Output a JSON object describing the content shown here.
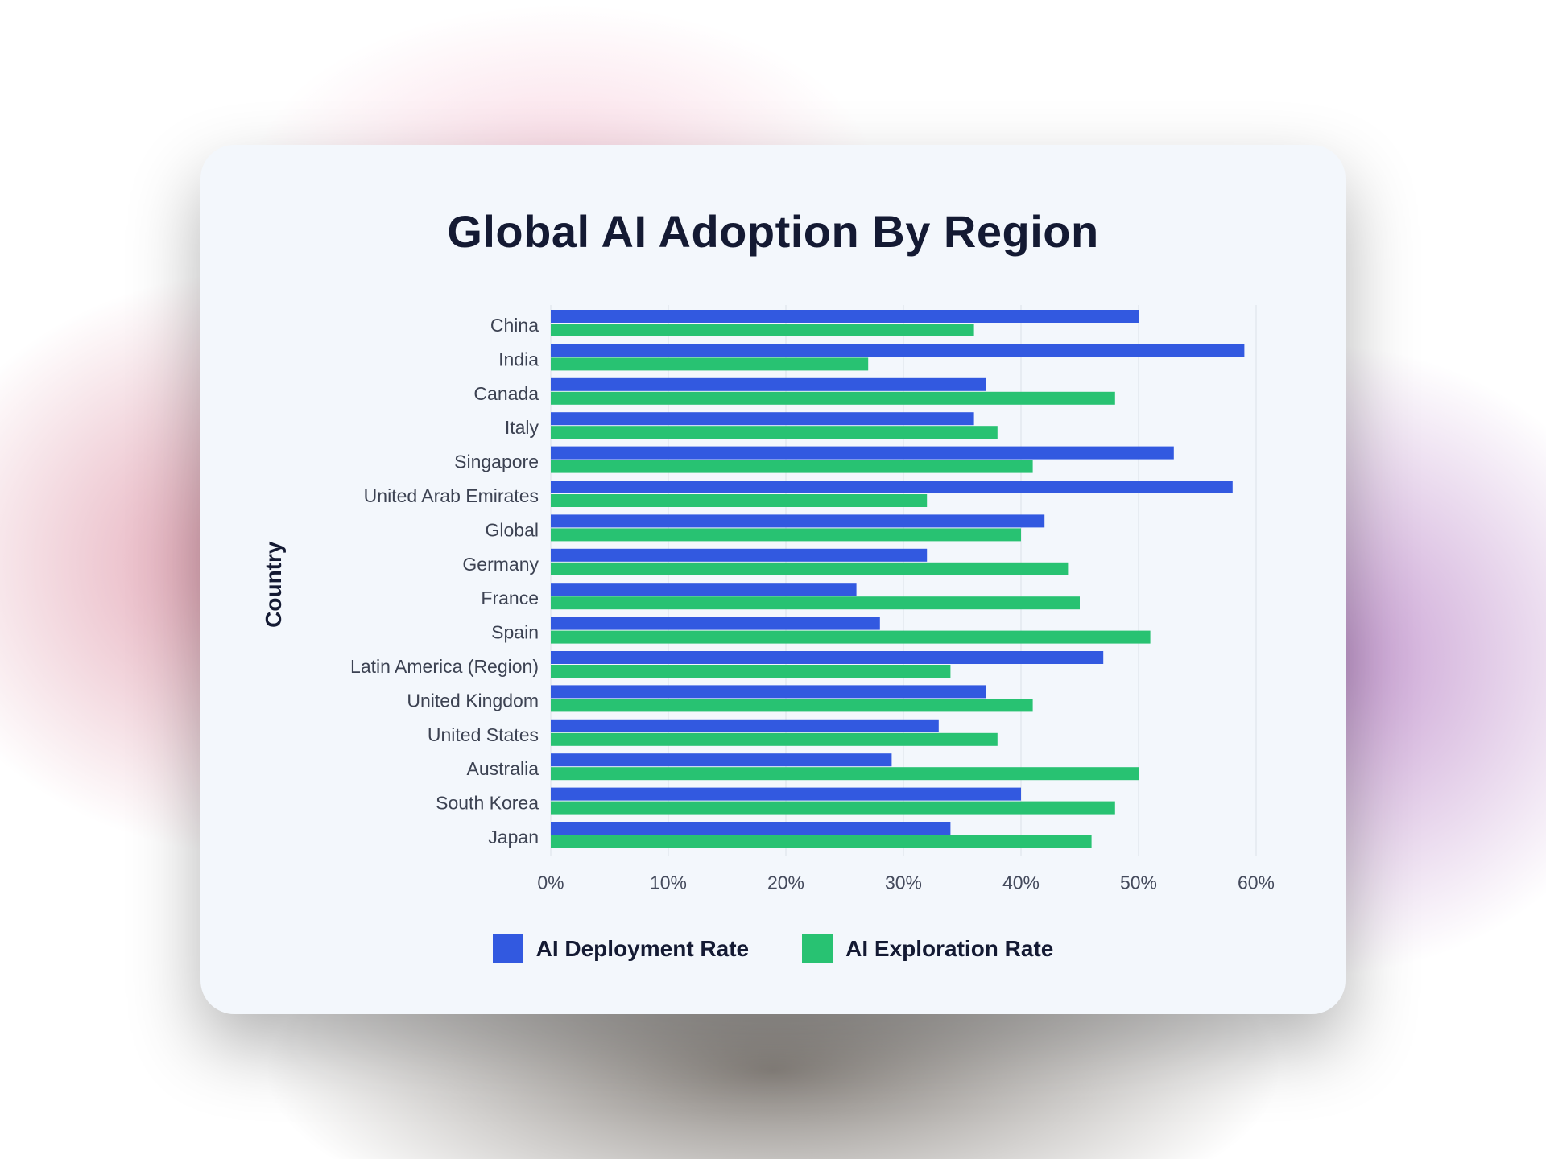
{
  "chart_data": {
    "type": "bar",
    "orientation": "horizontal",
    "title": "Global AI Adoption By Region",
    "xlabel": "",
    "ylabel": "Country",
    "xlim": [
      0,
      60
    ],
    "x_ticks": [
      "0%",
      "10%",
      "20%",
      "30%",
      "40%",
      "50%",
      "60%"
    ],
    "grid": true,
    "legend_position": "bottom-center",
    "categories": [
      "China",
      "India",
      "Canada",
      "Italy",
      "Singapore",
      "United Arab Emirates",
      "Global",
      "Germany",
      "France",
      "Spain",
      "Latin America (Region)",
      "United Kingdom",
      "United States",
      "Australia",
      "South Korea",
      "Japan"
    ],
    "series": [
      {
        "name": "AI Deployment Rate",
        "color": "#3259e0",
        "values": [
          50,
          59,
          37,
          36,
          53,
          58,
          42,
          32,
          26,
          28,
          47,
          37,
          33,
          29,
          40,
          34
        ]
      },
      {
        "name": "AI Exploration Rate",
        "color": "#28c272",
        "values": [
          36,
          27,
          48,
          38,
          41,
          32,
          40,
          44,
          45,
          51,
          34,
          41,
          38,
          50,
          48,
          46
        ]
      }
    ]
  }
}
